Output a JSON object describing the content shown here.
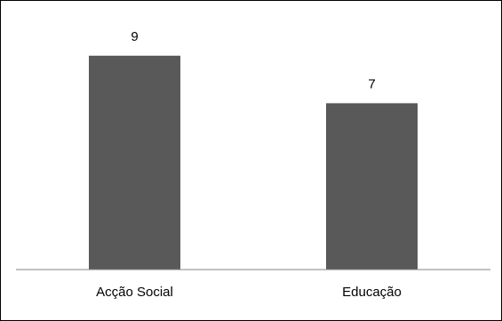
{
  "chart_data": {
    "type": "bar",
    "categories": [
      "Acção Social",
      "Educação"
    ],
    "values": [
      9,
      7
    ],
    "data_labels": [
      "9",
      "7"
    ],
    "bar_color": "#595959",
    "axis_color": "#868686",
    "title": "",
    "xlabel": "",
    "ylabel": "",
    "ylim": [
      0,
      10
    ],
    "grid": false,
    "legend": "none"
  }
}
